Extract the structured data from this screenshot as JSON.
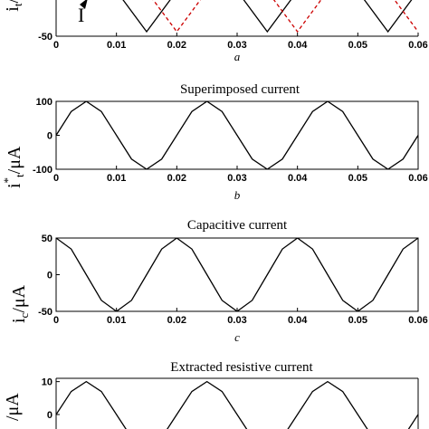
{
  "chart_data": [
    {
      "panel_label": "a",
      "type": "line",
      "title": "",
      "ylabel": "i_t/μA",
      "xlim": [
        0,
        0.06
      ],
      "ylim": [
        -50,
        50
      ],
      "x_ticks": [
        "0",
        "0.01",
        "0.02",
        "0.03",
        "0.04",
        "0.05",
        "0.06"
      ],
      "y_ticks": [
        "-50"
      ],
      "annotation": "I",
      "series": [
        {
          "color": "#000000",
          "style": "solid",
          "x": [
            0.005,
            0.01,
            0.015,
            0.02,
            0.025,
            0.03,
            0.035,
            0.04,
            0.045,
            0.05,
            0.055,
            0.06
          ],
          "y": [
            60,
            0,
            -45,
            0,
            60,
            0,
            -45,
            0,
            60,
            0,
            -45,
            0
          ]
        },
        {
          "color": "#cc0000",
          "style": "dashed",
          "x": [
            0.01,
            0.015,
            0.02,
            0.025,
            0.03,
            0.035,
            0.04,
            0.045,
            0.05,
            0.055,
            0.06
          ],
          "y": [
            60,
            0,
            -45,
            0,
            60,
            0,
            -45,
            0,
            60,
            0,
            -45
          ]
        }
      ]
    },
    {
      "panel_label": "b",
      "type": "line",
      "title": "Superimposed current",
      "ylabel": "i*_t/μA",
      "xlim": [
        0,
        0.06
      ],
      "ylim": [
        -100,
        100
      ],
      "x_ticks": [
        "0",
        "0.01",
        "0.02",
        "0.03",
        "0.04",
        "0.05",
        "0.06"
      ],
      "y_ticks": [
        "100",
        "0",
        "-100"
      ],
      "series": [
        {
          "color": "#000000",
          "style": "solid",
          "x": [
            0,
            0.0025,
            0.005,
            0.0075,
            0.01,
            0.0125,
            0.015,
            0.0175,
            0.02,
            0.0225,
            0.025,
            0.0275,
            0.03,
            0.0325,
            0.035,
            0.0375,
            0.04,
            0.0425,
            0.045,
            0.0475,
            0.05,
            0.0525,
            0.055,
            0.0575,
            0.06
          ],
          "y": [
            0,
            70,
            100,
            70,
            0,
            -70,
            -100,
            -70,
            0,
            70,
            100,
            70,
            0,
            -70,
            -100,
            -70,
            0,
            70,
            100,
            70,
            0,
            -70,
            -100,
            -70,
            0
          ]
        }
      ]
    },
    {
      "panel_label": "c",
      "type": "line",
      "title": "Capacitive current",
      "ylabel": "i_c/μA",
      "xlim": [
        0,
        0.06
      ],
      "ylim": [
        -50,
        50
      ],
      "x_ticks": [
        "0",
        "0.01",
        "0.02",
        "0.03",
        "0.04",
        "0.05",
        "0.06"
      ],
      "y_ticks": [
        "50",
        "0",
        "-50"
      ],
      "series": [
        {
          "color": "#000000",
          "style": "solid",
          "x": [
            0,
            0.0025,
            0.005,
            0.0075,
            0.01,
            0.0125,
            0.015,
            0.0175,
            0.02,
            0.0225,
            0.025,
            0.0275,
            0.03,
            0.0325,
            0.035,
            0.0375,
            0.04,
            0.0425,
            0.045,
            0.0475,
            0.05,
            0.0525,
            0.055,
            0.0575,
            0.06
          ],
          "y": [
            50,
            35,
            0,
            -35,
            -50,
            -35,
            0,
            35,
            50,
            35,
            0,
            -35,
            -50,
            -35,
            0,
            35,
            50,
            35,
            0,
            -35,
            -50,
            -35,
            0,
            35,
            50
          ]
        }
      ]
    },
    {
      "panel_label": "",
      "type": "line",
      "title": "Extracted resistive current",
      "ylabel": "/μA",
      "xlim": [
        0,
        0.06
      ],
      "ylim": [
        -11,
        11
      ],
      "x_ticks": [],
      "y_ticks": [
        "10",
        "0"
      ],
      "series": [
        {
          "color": "#000000",
          "style": "solid",
          "x": [
            0,
            0.0025,
            0.005,
            0.0075,
            0.01,
            0.0125,
            0.015,
            0.0175,
            0.02,
            0.0225,
            0.025,
            0.0275,
            0.03,
            0.0325,
            0.035,
            0.0375,
            0.04,
            0.0425,
            0.045,
            0.0475,
            0.05,
            0.0525,
            0.055,
            0.0575,
            0.06
          ],
          "y": [
            0,
            7,
            10,
            7,
            0,
            -7,
            -10,
            -7,
            0,
            7,
            10,
            7,
            0,
            -7,
            -10,
            -7,
            0,
            7,
            10,
            7,
            0,
            -7,
            -10,
            -7,
            0
          ]
        }
      ]
    }
  ]
}
